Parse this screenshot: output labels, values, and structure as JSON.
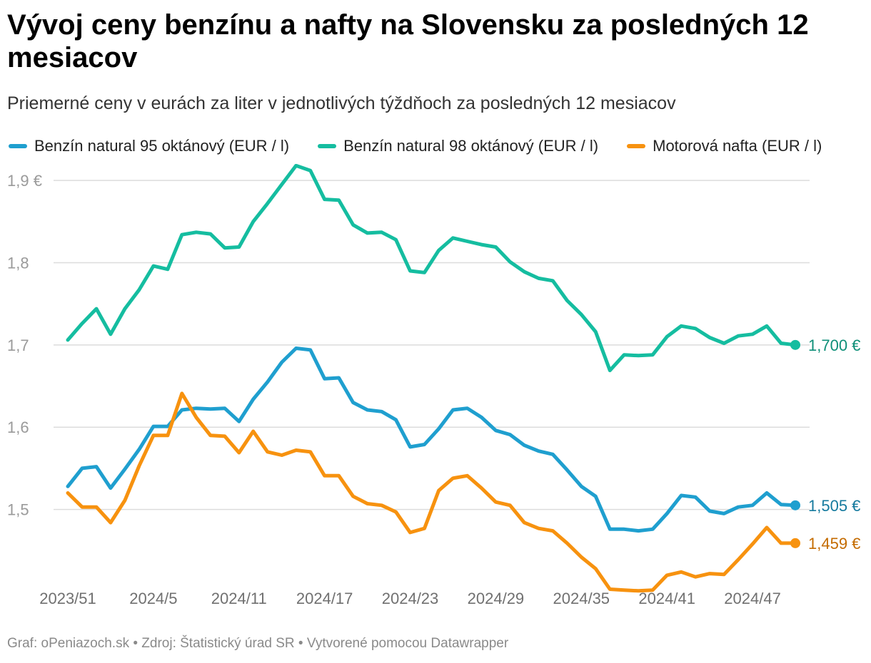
{
  "title": "Vývoj ceny benzínu a nafty na Slovensku za posledných 12 mesiacov",
  "subtitle": "Priemerné ceny v eurách za liter v jednotlivých týždňoch za posledných 12 mesiacov",
  "footer": "Graf: oPeniazoch.sk • Zdroj: Štatistický úrad SR • Vytvorené pomocou Datawrapper",
  "chart_data": {
    "type": "line",
    "title": "Vývoj ceny benzínu a nafty na Slovensku za posledných 12 mesiacov",
    "subtitle": "Priemerné ceny v eurách za liter v jednotlivých týždňoch za posledných 12 mesiacov",
    "x_tick_labels": [
      "2023/51",
      "2024/5",
      "2024/11",
      "2024/17",
      "2024/23",
      "2024/29",
      "2024/35",
      "2024/41",
      "2024/47"
    ],
    "x_tick_index": [
      0,
      6,
      12,
      18,
      24,
      30,
      36,
      42,
      48
    ],
    "y_ticks": [
      1.5,
      1.6,
      1.7,
      1.8,
      1.9
    ],
    "y_tick_labels": [
      "1,5",
      "1,6",
      "1,7",
      "1,8",
      "1,9 €"
    ],
    "ylim": [
      1.4,
      1.92
    ],
    "grid": true,
    "legend_position": "top-left",
    "series": [
      {
        "name": "Benzín natural 95 oktánový (EUR / l)",
        "color": "#1f9fcf",
        "end_label": "1,505 €",
        "end_label_color": "#157a9e",
        "values": [
          1.528,
          1.55,
          1.552,
          1.526,
          1.549,
          1.573,
          1.601,
          1.601,
          1.621,
          1.623,
          1.622,
          1.623,
          1.607,
          1.634,
          1.655,
          1.679,
          1.696,
          1.694,
          1.659,
          1.66,
          1.63,
          1.621,
          1.619,
          1.609,
          1.576,
          1.579,
          1.598,
          1.621,
          1.623,
          1.612,
          1.596,
          1.591,
          1.578,
          1.571,
          1.567,
          1.548,
          1.528,
          1.516,
          1.476,
          1.476,
          1.474,
          1.476,
          1.495,
          1.517,
          1.515,
          1.498,
          1.495,
          1.503,
          1.505,
          1.52,
          1.506,
          1.505
        ]
      },
      {
        "name": "Benzín natural 98 oktánový (EUR / l)",
        "color": "#15bda0",
        "end_label": "1,700 €",
        "end_label_color": "#0e8f78",
        "values": [
          1.706,
          1.726,
          1.744,
          1.713,
          1.744,
          1.767,
          1.796,
          1.792,
          1.834,
          1.837,
          1.835,
          1.818,
          1.819,
          1.85,
          1.872,
          1.895,
          1.918,
          1.912,
          1.877,
          1.876,
          1.846,
          1.836,
          1.837,
          1.828,
          1.79,
          1.788,
          1.815,
          1.83,
          1.826,
          1.822,
          1.819,
          1.801,
          1.789,
          1.781,
          1.778,
          1.754,
          1.737,
          1.716,
          1.669,
          1.688,
          1.687,
          1.688,
          1.71,
          1.723,
          1.72,
          1.709,
          1.702,
          1.711,
          1.713,
          1.723,
          1.702,
          1.7
        ]
      },
      {
        "name": "Motorová nafta (EUR / l)",
        "color": "#f7920f",
        "end_label": "1,459 €",
        "end_label_color": "#c46b00",
        "values": [
          1.52,
          1.503,
          1.503,
          1.484,
          1.511,
          1.553,
          1.59,
          1.59,
          1.641,
          1.612,
          1.59,
          1.589,
          1.569,
          1.595,
          1.57,
          1.566,
          1.572,
          1.57,
          1.541,
          1.541,
          1.516,
          1.507,
          1.505,
          1.497,
          1.472,
          1.477,
          1.523,
          1.538,
          1.541,
          1.526,
          1.509,
          1.505,
          1.484,
          1.477,
          1.474,
          1.459,
          1.442,
          1.428,
          1.403,
          1.402,
          1.401,
          1.402,
          1.42,
          1.424,
          1.418,
          1.422,
          1.421,
          1.439,
          1.458,
          1.478,
          1.459,
          1.459
        ]
      }
    ]
  }
}
